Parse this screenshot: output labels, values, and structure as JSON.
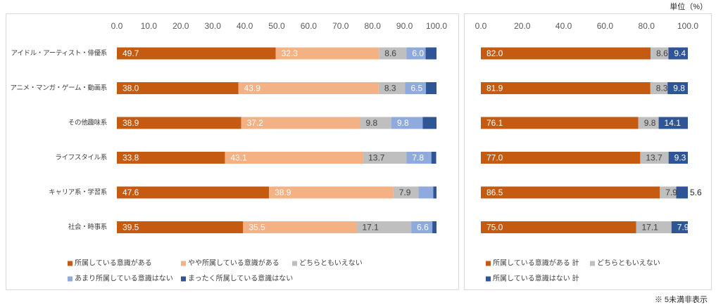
{
  "unit_label": "単位（%）",
  "footnote": "※ 5未満非表示",
  "chart_data": [
    {
      "type": "bar",
      "orientation": "horizontal",
      "stacked": true,
      "categories": [
        "アイドル・アーティスト・俳優系",
        "アニメ・マンガ・ゲーム・動画系",
        "その他趣味系",
        "ライフスタイル系",
        "キャリア系・学習系",
        "社会・時事系"
      ],
      "xlim": [
        0,
        100
      ],
      "x_ticks": [
        0.0,
        10.0,
        20.0,
        30.0,
        40.0,
        50.0,
        60.0,
        70.0,
        80.0,
        90.0,
        100.0
      ],
      "x_axis_position": "top",
      "grid": false,
      "legend_position": "bottom",
      "series": [
        {
          "name": "所属している意識がある",
          "color": "#C55A11",
          "label_color": "#FFFFFF",
          "values": [
            49.7,
            38.0,
            38.9,
            33.8,
            47.6,
            39.5
          ]
        },
        {
          "name": "やや所属している意識がある",
          "color": "#F4B183",
          "label_color": "#FFFFFF",
          "values": [
            32.3,
            43.9,
            37.2,
            43.1,
            38.9,
            35.5
          ]
        },
        {
          "name": "どちらともいえない",
          "color": "#BFBFBF",
          "label_color": "#404040",
          "values": [
            8.6,
            8.3,
            9.8,
            13.7,
            7.9,
            17.1
          ]
        },
        {
          "name": "あまり所属している意識はない",
          "color": "#8FAADC",
          "label_color": "#FFFFFF",
          "values": [
            6.0,
            6.5,
            9.8,
            7.8,
            4.6,
            6.6
          ]
        },
        {
          "name": "まったく所属している意識はない",
          "color": "#2F5597",
          "label_color": "#FFFFFF",
          "values": [
            3.4,
            3.3,
            4.3,
            1.5,
            1.0,
            1.3
          ]
        }
      ]
    },
    {
      "type": "bar",
      "orientation": "horizontal",
      "stacked": true,
      "xlim": [
        0,
        100
      ],
      "x_ticks": [
        0.0,
        20.0,
        40.0,
        60.0,
        80.0,
        100.0
      ],
      "x_axis_position": "top",
      "grid": false,
      "legend_position": "bottom",
      "series": [
        {
          "name": "所属している意識がある 計",
          "color": "#C55A11",
          "label_color": "#FFFFFF",
          "values": [
            82.0,
            81.9,
            76.1,
            77.0,
            86.5,
            75.0
          ]
        },
        {
          "name": "どちらともいえない",
          "color": "#BFBFBF",
          "label_color": "#404040",
          "values": [
            8.6,
            8.3,
            9.8,
            13.7,
            7.9,
            17.1
          ]
        },
        {
          "name": "所属している意識はない 計",
          "color": "#2F5597",
          "label_color": "#FFFFFF",
          "values": [
            9.4,
            9.8,
            14.1,
            9.3,
            5.6,
            7.9
          ]
        }
      ]
    }
  ]
}
